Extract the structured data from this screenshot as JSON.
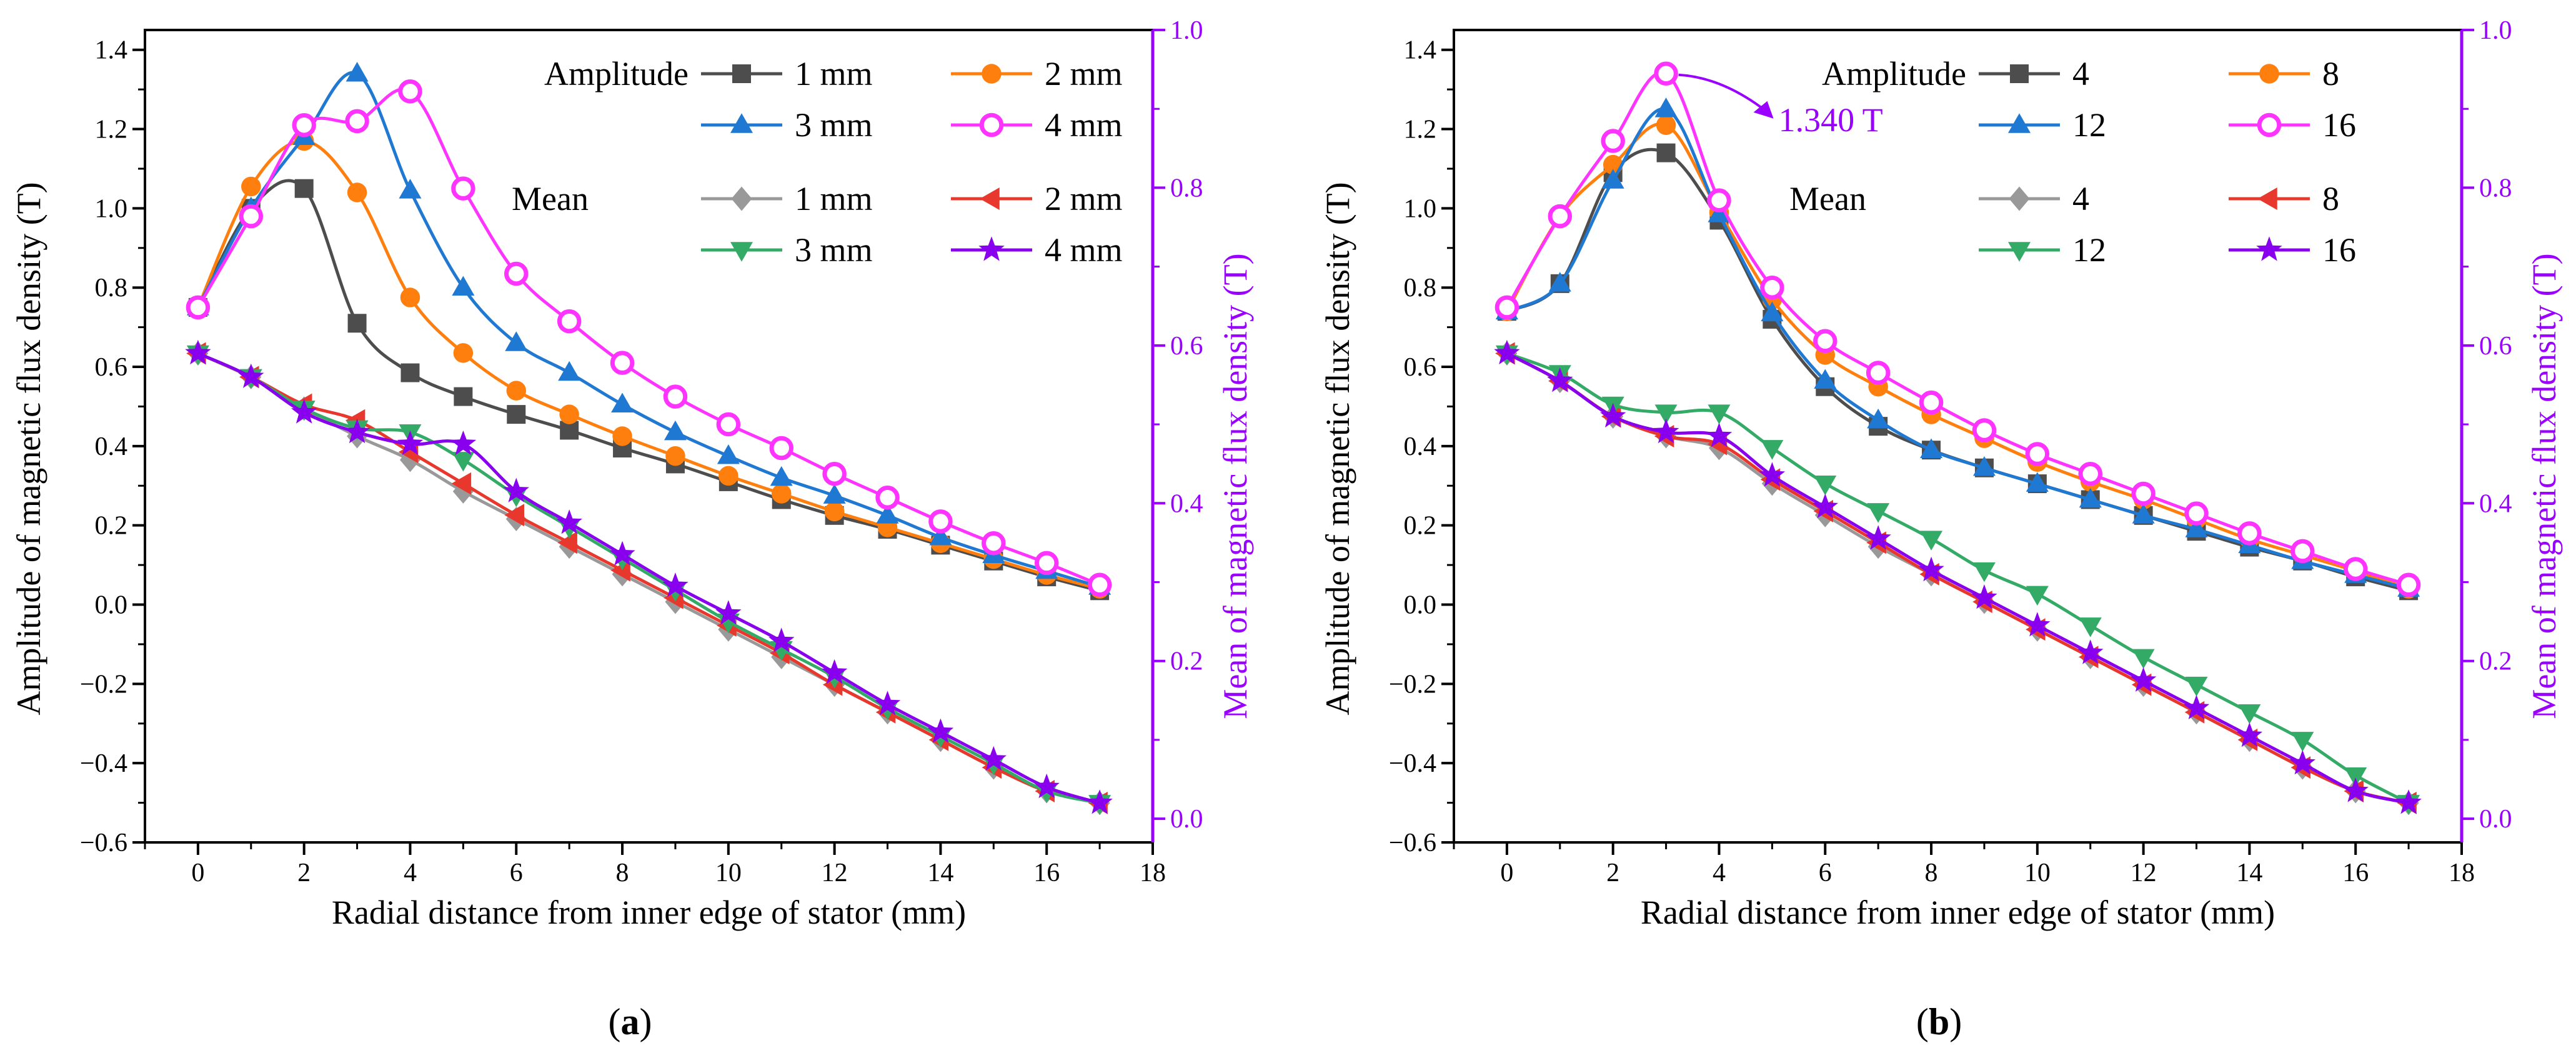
{
  "colors": {
    "c1": "#4d4d4d",
    "c2": "#ff7f0e",
    "c3": "#1f78d1",
    "c4": "#ff33ff",
    "m1": "#999999",
    "m2": "#e8382d",
    "m3": "#33aa66",
    "m4": "#8800ee",
    "right_axis": "#9900ff"
  },
  "chart_data": [
    {
      "type": "line",
      "panel": "(a)",
      "panel_letter": "a",
      "xlabel": "Radial distance from inner edge of stator (mm)",
      "ylabel": "Amplitude of magnetic flux density (T)",
      "ylabel_right": "Mean of magnetic flux density (T)",
      "xlim": [
        -1,
        18
      ],
      "ylim": [
        -0.6,
        1.45
      ],
      "ylim_right": [
        -0.03,
        1.0
      ],
      "x_ticks": [
        0,
        2,
        4,
        6,
        8,
        10,
        12,
        14,
        16,
        18
      ],
      "y_ticks": [
        -0.6,
        -0.4,
        -0.2,
        0.0,
        0.2,
        0.4,
        0.6,
        0.8,
        1.0,
        1.2,
        1.4
      ],
      "y_ticks_right": [
        0.0,
        0.2,
        0.4,
        0.6,
        0.8,
        1.0
      ],
      "x": [
        0,
        1,
        2,
        3,
        4,
        5,
        6,
        7,
        8,
        9,
        10,
        11,
        12,
        13,
        14,
        15,
        16,
        17
      ],
      "legend_amplitude_title": "Amplitude",
      "legend_mean_title": "Mean",
      "amplitude_series": [
        {
          "name": "1 mm",
          "marker": "square",
          "color_key": "c1",
          "values": [
            0.75,
            1.0,
            1.05,
            0.71,
            0.585,
            0.525,
            0.48,
            0.44,
            0.395,
            0.355,
            0.31,
            0.265,
            0.225,
            0.19,
            0.15,
            0.11,
            0.07,
            0.035
          ]
        },
        {
          "name": "2 mm",
          "marker": "circle",
          "color_key": "c2",
          "values": [
            0.75,
            1.055,
            1.17,
            1.04,
            0.775,
            0.635,
            0.54,
            0.48,
            0.425,
            0.375,
            0.325,
            0.28,
            0.235,
            0.195,
            0.155,
            0.115,
            0.075,
            0.04
          ]
        },
        {
          "name": "3 mm",
          "marker": "triangle-up",
          "color_key": "c3",
          "values": [
            0.75,
            1.0,
            1.18,
            1.34,
            1.045,
            0.8,
            0.66,
            0.585,
            0.505,
            0.435,
            0.375,
            0.32,
            0.275,
            0.225,
            0.17,
            0.125,
            0.085,
            0.045
          ]
        },
        {
          "name": "4 mm",
          "marker": "circle-open",
          "color_key": "c4",
          "values": [
            0.75,
            0.98,
            1.21,
            1.22,
            1.295,
            1.05,
            0.835,
            0.715,
            0.61,
            0.525,
            0.455,
            0.395,
            0.33,
            0.27,
            0.21,
            0.155,
            0.105,
            0.05
          ]
        }
      ],
      "mean_series": [
        {
          "name": "1 mm",
          "marker": "diamond",
          "color_key": "m1",
          "values": [
            0.59,
            0.56,
            0.52,
            0.485,
            0.455,
            0.415,
            0.38,
            0.345,
            0.31,
            0.275,
            0.24,
            0.205,
            0.17,
            0.135,
            0.1,
            0.065,
            0.035,
            0.02
          ]
        },
        {
          "name": "2 mm",
          "marker": "triangle-left",
          "color_key": "m2",
          "values": [
            0.59,
            0.56,
            0.525,
            0.505,
            0.465,
            0.425,
            0.385,
            0.35,
            0.315,
            0.28,
            0.245,
            0.21,
            0.17,
            0.135,
            0.1,
            0.065,
            0.035,
            0.02
          ]
        },
        {
          "name": "3 mm",
          "marker": "triangle-down",
          "color_key": "m3",
          "values": [
            0.59,
            0.56,
            0.52,
            0.495,
            0.49,
            0.455,
            0.41,
            0.37,
            0.33,
            0.29,
            0.25,
            0.215,
            0.18,
            0.14,
            0.105,
            0.07,
            0.035,
            0.02
          ]
        },
        {
          "name": "4 mm",
          "marker": "star",
          "color_key": "m4",
          "values": [
            0.59,
            0.56,
            0.515,
            0.49,
            0.475,
            0.475,
            0.415,
            0.375,
            0.335,
            0.295,
            0.26,
            0.225,
            0.185,
            0.145,
            0.11,
            0.075,
            0.04,
            0.02
          ]
        }
      ]
    },
    {
      "type": "line",
      "panel": "(b)",
      "panel_letter": "b",
      "xlabel": "Radial distance from inner edge of stator (mm)",
      "ylabel": "Amplitude of magnetic flux density (T)",
      "ylabel_right": "Mean of magnetic flux density (T)",
      "xlim": [
        -1,
        18
      ],
      "ylim": [
        -0.6,
        1.45
      ],
      "ylim_right": [
        -0.03,
        1.0
      ],
      "x_ticks": [
        0,
        2,
        4,
        6,
        8,
        10,
        12,
        14,
        16,
        18
      ],
      "y_ticks": [
        -0.6,
        -0.4,
        -0.2,
        0.0,
        0.2,
        0.4,
        0.6,
        0.8,
        1.0,
        1.2,
        1.4
      ],
      "y_ticks_right": [
        0.0,
        0.2,
        0.4,
        0.6,
        0.8,
        1.0
      ],
      "x": [
        0,
        1,
        2,
        3,
        4,
        5,
        6,
        7,
        8,
        9,
        10,
        11,
        12,
        13,
        14,
        15,
        16,
        17
      ],
      "legend_amplitude_title": "Amplitude",
      "legend_mean_title": "Mean",
      "annotation": {
        "text": "1.340 T",
        "x": 3,
        "y": 1.34
      },
      "amplitude_series": [
        {
          "name": "4",
          "marker": "square",
          "color_key": "c1",
          "values": [
            0.74,
            0.81,
            1.09,
            1.14,
            0.97,
            0.72,
            0.55,
            0.45,
            0.39,
            0.345,
            0.305,
            0.265,
            0.225,
            0.185,
            0.145,
            0.11,
            0.07,
            0.035
          ]
        },
        {
          "name": "8",
          "marker": "circle",
          "color_key": "c2",
          "values": [
            0.74,
            0.98,
            1.11,
            1.21,
            0.99,
            0.77,
            0.63,
            0.55,
            0.48,
            0.42,
            0.36,
            0.31,
            0.265,
            0.215,
            0.165,
            0.125,
            0.085,
            0.04
          ]
        },
        {
          "name": "12",
          "marker": "triangle-up",
          "color_key": "c3",
          "values": [
            0.74,
            0.81,
            1.07,
            1.25,
            0.985,
            0.735,
            0.565,
            0.465,
            0.39,
            0.345,
            0.305,
            0.265,
            0.225,
            0.19,
            0.15,
            0.11,
            0.075,
            0.04
          ]
        },
        {
          "name": "16",
          "marker": "circle-open",
          "color_key": "c4",
          "values": [
            0.75,
            0.98,
            1.17,
            1.34,
            1.02,
            0.8,
            0.665,
            0.585,
            0.51,
            0.44,
            0.38,
            0.33,
            0.28,
            0.23,
            0.18,
            0.135,
            0.09,
            0.05
          ]
        }
      ],
      "mean_series": [
        {
          "name": "4",
          "marker": "diamond",
          "color_key": "m1",
          "values": [
            0.59,
            0.555,
            0.51,
            0.485,
            0.47,
            0.425,
            0.385,
            0.345,
            0.31,
            0.275,
            0.24,
            0.205,
            0.17,
            0.135,
            0.1,
            0.065,
            0.035,
            0.02
          ]
        },
        {
          "name": "8",
          "marker": "triangle-left",
          "color_key": "m2",
          "values": [
            0.59,
            0.555,
            0.51,
            0.485,
            0.475,
            0.43,
            0.39,
            0.35,
            0.31,
            0.275,
            0.24,
            0.205,
            0.17,
            0.135,
            0.1,
            0.065,
            0.035,
            0.02
          ]
        },
        {
          "name": "12",
          "marker": "triangle-down",
          "color_key": "m3",
          "values": [
            0.59,
            0.565,
            0.525,
            0.515,
            0.515,
            0.47,
            0.425,
            0.39,
            0.355,
            0.315,
            0.285,
            0.245,
            0.205,
            0.17,
            0.135,
            0.1,
            0.055,
            0.02
          ]
        },
        {
          "name": "16",
          "marker": "star",
          "color_key": "m4",
          "values": [
            0.59,
            0.555,
            0.51,
            0.49,
            0.485,
            0.435,
            0.395,
            0.355,
            0.315,
            0.28,
            0.245,
            0.21,
            0.175,
            0.14,
            0.105,
            0.07,
            0.035,
            0.02
          ]
        }
      ]
    }
  ]
}
